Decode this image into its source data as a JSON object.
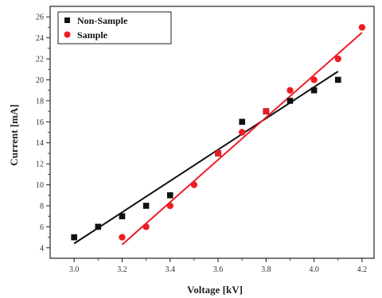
{
  "chart_data": {
    "type": "scatter",
    "xlabel": "Voltage [kV]",
    "ylabel": "Current [mA]",
    "xlim": [
      2.9,
      4.25
    ],
    "ylim": [
      3,
      27
    ],
    "xticks": [
      3.0,
      3.2,
      3.4,
      3.6,
      3.8,
      4.0,
      4.2
    ],
    "yticks": [
      4,
      6,
      8,
      10,
      12,
      14,
      16,
      18,
      20,
      22,
      24,
      26
    ],
    "legend_position": "top-left",
    "series": [
      {
        "name": "Non-Sample",
        "marker": "square",
        "color": "#111111",
        "x": [
          3.0,
          3.1,
          3.2,
          3.3,
          3.4,
          3.6,
          3.7,
          3.8,
          3.9,
          4.0,
          4.1
        ],
        "y": [
          5,
          6,
          7,
          8,
          9,
          13,
          16,
          17,
          18,
          19,
          20
        ],
        "fit": [
          [
            3.0,
            4.4
          ],
          [
            4.1,
            20.8
          ]
        ]
      },
      {
        "name": "Sample",
        "marker": "circle",
        "color": "#ee1c25",
        "x": [
          3.2,
          3.3,
          3.4,
          3.5,
          3.6,
          3.7,
          3.8,
          3.9,
          4.0,
          4.1,
          4.2
        ],
        "y": [
          5,
          6,
          8,
          10,
          13,
          15,
          17,
          19,
          20,
          22,
          25
        ],
        "fit": [
          [
            3.2,
            4.3
          ],
          [
            4.2,
            24.5
          ]
        ]
      }
    ]
  }
}
